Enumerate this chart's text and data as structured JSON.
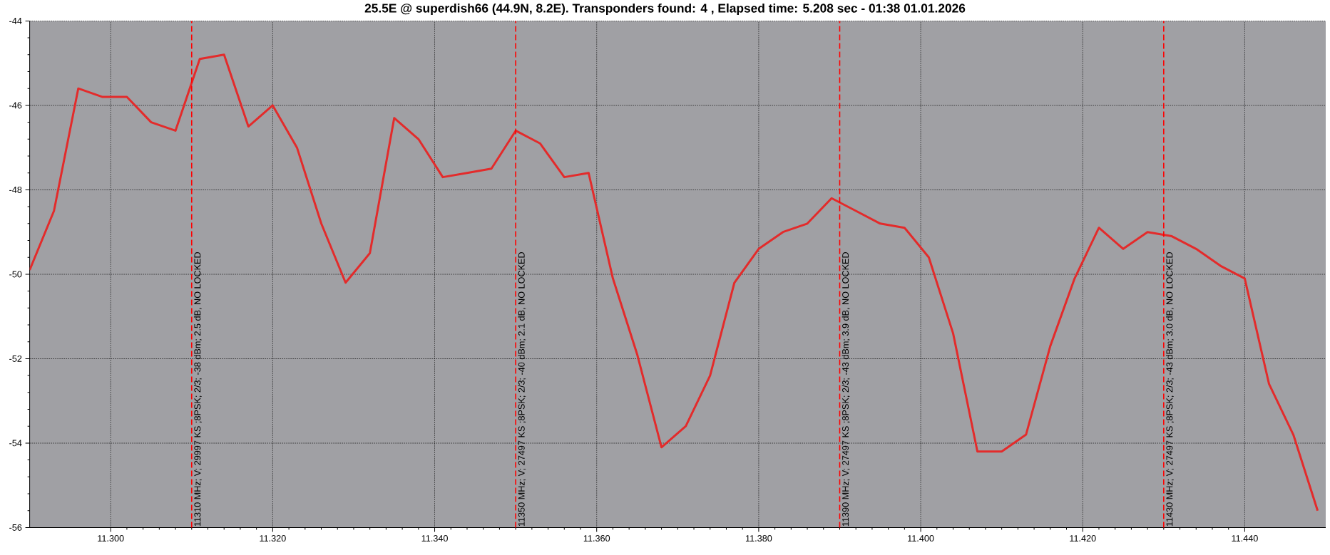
{
  "chart_data": {
    "type": "line",
    "title": "25.5E @ superdish66 (44.9N, 8.2E). Transponders found: 4 , Elapsed time: 5.208 sec - 01:38 01.01.2026",
    "x": [
      11.29,
      11.293,
      11.296,
      11.299,
      11.302,
      11.305,
      11.308,
      11.311,
      11.314,
      11.317,
      11.32,
      11.323,
      11.326,
      11.329,
      11.332,
      11.335,
      11.338,
      11.341,
      11.344,
      11.347,
      11.35,
      11.353,
      11.356,
      11.359,
      11.362,
      11.365,
      11.368,
      11.371,
      11.374,
      11.377,
      11.38,
      11.383,
      11.386,
      11.389,
      11.392,
      11.395,
      11.398,
      11.401,
      11.404,
      11.407,
      11.41,
      11.413,
      11.416,
      11.419,
      11.422,
      11.425,
      11.428,
      11.431,
      11.434,
      11.437,
      11.44,
      11.443,
      11.446,
      11.449
    ],
    "series": [
      {
        "color": "#e32b2b",
        "values": [
          -49.9,
          -48.5,
          -45.6,
          -45.8,
          -45.8,
          -46.4,
          -46.6,
          -44.9,
          -44.8,
          -46.5,
          -46.0,
          -47.0,
          -48.8,
          -50.2,
          -49.5,
          -46.3,
          -46.8,
          -47.7,
          -47.6,
          -47.5,
          -46.6,
          -46.9,
          -47.7,
          -47.6,
          -50.1,
          -51.9,
          -54.1,
          -53.6,
          -52.4,
          -50.2,
          -49.4,
          -49.0,
          -48.8,
          -48.2,
          -48.5,
          -48.8,
          -48.9,
          -49.6,
          -51.4,
          -54.2,
          -54.2,
          -53.8,
          -51.7,
          -50.1,
          -48.9,
          -49.4,
          -49.0,
          -49.1,
          -49.4,
          -49.8,
          -50.1,
          -52.6,
          -53.8,
          -55.6
        ]
      }
    ],
    "xlim": [
      11.29,
      11.45
    ],
    "ylim": [
      -56,
      -44
    ],
    "xticks": [
      {
        "value": 11.3,
        "label": "11.300"
      },
      {
        "value": 11.32,
        "label": "11.320"
      },
      {
        "value": 11.34,
        "label": "11.340"
      },
      {
        "value": 11.36,
        "label": "11.360"
      },
      {
        "value": 11.38,
        "label": "11.380"
      },
      {
        "value": 11.4,
        "label": "11.400"
      },
      {
        "value": 11.42,
        "label": "11.420"
      },
      {
        "value": 11.44,
        "label": "11.440"
      }
    ],
    "yticks": [
      -56,
      -54,
      -52,
      -50,
      -48,
      -46,
      -44
    ],
    "grid": true,
    "ref_lines": [
      {
        "axis": "x",
        "value": 11.31,
        "label": "11310 MHz; V; 29997 KS ;8PSK; 2/3; -38 dBm; 2.5 dB, NO LOCKED",
        "color": "#ff0000",
        "line_style": "dashed"
      },
      {
        "axis": "x",
        "value": 11.35,
        "label": "11350 MHz; V; 27497 KS ;8PSK; 2/3; -40 dBm; 2.1 dB, NO LOCKED",
        "color": "#ff0000",
        "line_style": "dashed"
      },
      {
        "axis": "x",
        "value": 11.39,
        "label": "11390 MHz; V; 27497 KS ;8PSK; 2/3; -43 dBm; 3.9 dB, NO LOCKED",
        "color": "#ff0000",
        "line_style": "dashed"
      },
      {
        "axis": "x",
        "value": 11.43,
        "label": "11430 MHz; V; 27497 KS ;8PSK; 2/3; -43 dBm; 3.0 dB, NO LOCKED",
        "color": "#ff0000",
        "line_style": "dashed"
      }
    ]
  }
}
